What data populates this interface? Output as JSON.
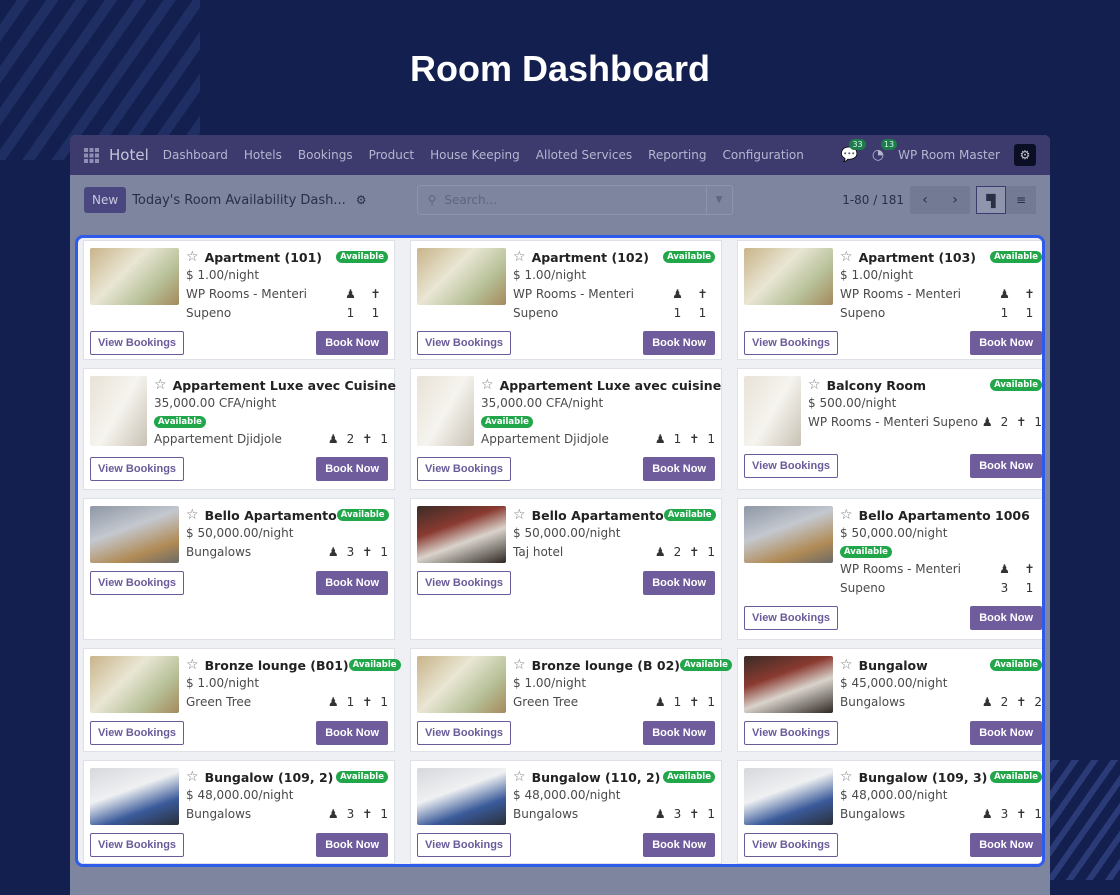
{
  "page_title": "Room Dashboard",
  "nav": {
    "app": "Hotel",
    "menu": [
      "Dashboard",
      "Hotels",
      "Bookings",
      "Product",
      "House Keeping",
      "Alloted Services",
      "Reporting",
      "Configuration"
    ],
    "messages_count": "33",
    "activity_count": "13",
    "company": "WP Room Master"
  },
  "control": {
    "new_label": "New",
    "view_title": "Today's Room Availability Dash...",
    "search_placeholder": "Search...",
    "pager": "1-80 / 181"
  },
  "buttons": {
    "view": "View Bookings",
    "book": "Book Now"
  },
  "status_label": "Available",
  "colors": {
    "accent": "#6f5c9c",
    "available": "#22a64a",
    "highlight": "#2f5bea"
  },
  "cards": [
    {
      "name": "Apartment (101)",
      "price": "$ 1.00/night",
      "loc1": "WP Rooms - Menteri",
      "loc2": "Supeno",
      "adults": "1",
      "children": "1",
      "layout": "stacked",
      "image": "floral-bedroom"
    },
    {
      "name": "Apartment (102)",
      "price": "$ 1.00/night",
      "loc1": "WP Rooms - Menteri",
      "loc2": "Supeno",
      "adults": "1",
      "children": "1",
      "layout": "stacked",
      "image": "floral-bedroom"
    },
    {
      "name": "Apartment (103)",
      "price": "$ 1.00/night",
      "loc1": "WP Rooms - Menteri",
      "loc2": "Supeno",
      "adults": "1",
      "children": "1",
      "layout": "stacked",
      "image": "floral-bedroom"
    },
    {
      "name": "Appartement Luxe avec Cuisine",
      "price": "35,000.00 CFA/night",
      "loc1": "Appartement Djidjole",
      "adults": "2",
      "children": "1",
      "layout": "inline-badge",
      "image": "white-hall"
    },
    {
      "name": "Appartement Luxe avec cuisine",
      "price": "35,000.00 CFA/night",
      "loc1": "Appartement Djidjole",
      "adults": "1",
      "children": "1",
      "layout": "inline-badge",
      "image": "white-hall"
    },
    {
      "name": "Balcony Room",
      "price": "$ 500.00/night",
      "loc1": "WP Rooms - Menteri Supeno",
      "adults": "2",
      "children": "1",
      "layout": "simple",
      "image": "white-hall"
    },
    {
      "name": "Bello Apartamento",
      "price": "$ 50,000.00/night",
      "loc1": "Bungalows",
      "adults": "3",
      "children": "1",
      "layout": "simple",
      "image": "grey-room"
    },
    {
      "name": "Bello Apartamento",
      "price": "$ 50,000.00/night",
      "loc1": "Taj hotel",
      "adults": "2",
      "children": "1",
      "layout": "simple",
      "image": "dark-room"
    },
    {
      "name": "Bello Apartamento 1006",
      "price": "$ 50,000.00/night",
      "loc1": "WP Rooms - Menteri",
      "loc2": "Supeno",
      "adults": "3",
      "children": "1",
      "layout": "stacked-inline-badge",
      "image": "grey-room"
    },
    {
      "name": "Bronze lounge (B01)",
      "price": "$ 1.00/night",
      "loc1": "Green Tree",
      "adults": "1",
      "children": "1",
      "layout": "simple",
      "image": "floral-bedroom"
    },
    {
      "name": "Bronze lounge (B 02)",
      "price": "$ 1.00/night",
      "loc1": "Green Tree",
      "adults": "1",
      "children": "1",
      "layout": "simple",
      "image": "floral-bedroom"
    },
    {
      "name": "Bungalow",
      "price": "$ 45,000.00/night",
      "loc1": "Bungalows",
      "adults": "2",
      "children": "2",
      "layout": "simple",
      "image": "dark-room"
    },
    {
      "name": "Bungalow (109, 2)",
      "price": "$ 48,000.00/night",
      "loc1": "Bungalows",
      "adults": "3",
      "children": "1",
      "layout": "simple",
      "image": "blue-bedroom"
    },
    {
      "name": "Bungalow (110, 2)",
      "price": "$ 48,000.00/night",
      "loc1": "Bungalows",
      "adults": "3",
      "children": "1",
      "layout": "simple",
      "image": "blue-bedroom"
    },
    {
      "name": "Bungalow (109, 3)",
      "price": "$ 48,000.00/night",
      "loc1": "Bungalows",
      "adults": "3",
      "children": "1",
      "layout": "simple",
      "image": "blue-bedroom"
    }
  ]
}
